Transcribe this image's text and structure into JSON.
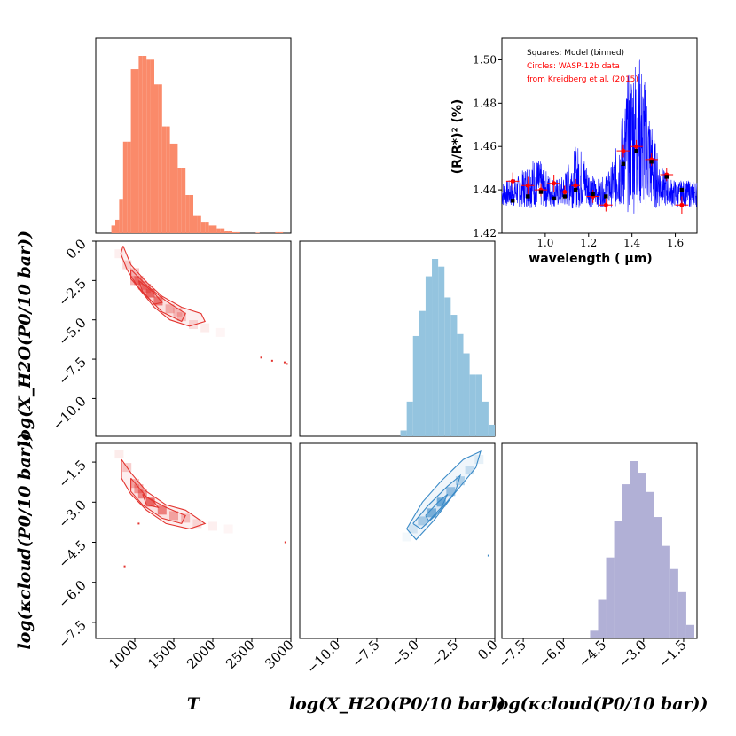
{
  "colors": {
    "temperature": "#fa8a6a",
    "water": "#94c4df",
    "cloud": "#b1b0d6",
    "contour_red": "#e3342f",
    "contour_blue": "#3a8ac7",
    "spectrum": "#0000ff",
    "data_red": "#ff0000",
    "model_black": "#000000"
  },
  "chart_data": [
    {
      "type": "histogram",
      "id": "hist_T",
      "parameter": "T",
      "xlim": [
        500,
        3000
      ],
      "bin_edges": [
        700,
        750,
        800,
        850,
        900,
        950,
        1000,
        1050,
        1100,
        1150,
        1200,
        1250,
        1300,
        1350,
        1400,
        1450,
        1500,
        1550,
        1600,
        1650,
        1700,
        1750,
        1800,
        1850,
        1900,
        1950,
        2000,
        2050,
        2100,
        2150,
        2200,
        2250,
        2300,
        2350,
        2400,
        2450,
        2500,
        2550,
        2600,
        2650,
        2700,
        2750,
        2800,
        2850,
        2900
      ],
      "counts": [
        0.04,
        0.07,
        0.18,
        0.48,
        0.48,
        0.86,
        0.86,
        0.93,
        0.93,
        0.91,
        0.91,
        0.78,
        0.78,
        0.56,
        0.56,
        0.47,
        0.47,
        0.34,
        0.34,
        0.2,
        0.2,
        0.09,
        0.09,
        0.06,
        0.06,
        0.04,
        0.04,
        0.025,
        0.025,
        0.01,
        0.01,
        0.005,
        0.005,
        0,
        0,
        0,
        0,
        0.003,
        0,
        0,
        0,
        0,
        0.005,
        0.005
      ]
    },
    {
      "type": "histogram",
      "id": "hist_water",
      "parameter": "log(X_H2O(P0/10 bar))",
      "xlim": [
        -12.4,
        0
      ],
      "bin_edges": [
        -6.0,
        -5.6,
        -5.2,
        -4.8,
        -4.4,
        -4.0,
        -3.6,
        -3.2,
        -2.8,
        -2.4,
        -2.0,
        -1.6,
        -1.2,
        -0.8,
        -0.4,
        0.0
      ],
      "counts": [
        0.03,
        0.18,
        0.52,
        0.65,
        0.83,
        0.92,
        0.88,
        0.72,
        0.63,
        0.53,
        0.43,
        0.32,
        0.32,
        0.18,
        0.06
      ]
    },
    {
      "type": "histogram",
      "id": "hist_cloud",
      "parameter": "log(kappa_cloud(P0/10 bar))",
      "xlim": [
        -8.3,
        -1.0
      ],
      "bin_edges": [
        -5.0,
        -4.7,
        -4.4,
        -4.1,
        -3.8,
        -3.5,
        -3.2,
        -2.9,
        -2.6,
        -2.3,
        -2.0,
        -1.7,
        -1.4,
        -1.1
      ],
      "counts": [
        0.04,
        0.2,
        0.42,
        0.61,
        0.8,
        0.92,
        0.86,
        0.76,
        0.63,
        0.48,
        0.36,
        0.24,
        0.07
      ]
    },
    {
      "type": "contour",
      "id": "T_vs_water",
      "x_param": "T",
      "y_param": "log(X_H2O(P0/10 bar))",
      "xlim": [
        500,
        3000
      ],
      "ylim": [
        -12.4,
        0
      ],
      "density_cells": [
        {
          "x": 900,
          "y": -1.5,
          "w": 0.25
        },
        {
          "x": 1000,
          "y": -2.5,
          "w": 0.45
        },
        {
          "x": 1100,
          "y": -2.8,
          "w": 0.55
        },
        {
          "x": 1200,
          "y": -3.3,
          "w": 0.85
        },
        {
          "x": 1300,
          "y": -3.8,
          "w": 0.75
        },
        {
          "x": 1450,
          "y": -4.3,
          "w": 0.4
        },
        {
          "x": 1600,
          "y": -4.8,
          "w": 0.35
        },
        {
          "x": 1750,
          "y": -5.3,
          "w": 0.2
        },
        {
          "x": 1900,
          "y": -5.5,
          "w": 0.12
        },
        {
          "x": 2100,
          "y": -5.8,
          "w": 0.06
        },
        {
          "x": 800,
          "y": -0.8,
          "w": 0.1
        },
        {
          "x": 1000,
          "y": -2.0,
          "w": 0.35
        },
        {
          "x": 1050,
          "y": -2.5,
          "w": 0.7
        },
        {
          "x": 1150,
          "y": -3.0,
          "w": 0.6
        },
        {
          "x": 1550,
          "y": -4.5,
          "w": 0.3
        }
      ],
      "levels": [
        [
          [
            850,
            -0.3
          ],
          [
            950,
            -1.5
          ],
          [
            1150,
            -2.6
          ],
          [
            1350,
            -3.5
          ],
          [
            1600,
            -4.2
          ],
          [
            1850,
            -4.6
          ],
          [
            1900,
            -5.1
          ],
          [
            1700,
            -5.4
          ],
          [
            1450,
            -5.0
          ],
          [
            1250,
            -4.2
          ],
          [
            1050,
            -3.0
          ],
          [
            900,
            -1.8
          ],
          [
            820,
            -0.8
          ],
          [
            850,
            -0.3
          ]
        ],
        [
          [
            950,
            -1.8
          ],
          [
            1150,
            -2.8
          ],
          [
            1400,
            -3.8
          ],
          [
            1650,
            -4.6
          ],
          [
            1600,
            -5.1
          ],
          [
            1350,
            -4.5
          ],
          [
            1150,
            -3.5
          ],
          [
            950,
            -2.4
          ],
          [
            950,
            -1.8
          ]
        ],
        [
          [
            1050,
            -2.5
          ],
          [
            1250,
            -3.3
          ],
          [
            1350,
            -3.9
          ],
          [
            1250,
            -4.0
          ],
          [
            1100,
            -3.2
          ],
          [
            1050,
            -2.5
          ]
        ]
      ],
      "outliers": [
        [
          2620,
          -7.4
        ],
        [
          2760,
          -7.6
        ],
        [
          2920,
          -7.7
        ],
        [
          2950,
          -7.8
        ]
      ]
    },
    {
      "type": "contour",
      "id": "T_vs_cloud",
      "x_param": "T",
      "y_param": "log(kappa_cloud(P0/10 bar))",
      "xlim": [
        500,
        3000
      ],
      "ylim": [
        -8.1,
        -0.8
      ],
      "density_cells": [
        {
          "x": 900,
          "y": -1.7,
          "w": 0.3
        },
        {
          "x": 1000,
          "y": -2.3,
          "w": 0.45
        },
        {
          "x": 1100,
          "y": -2.7,
          "w": 0.65
        },
        {
          "x": 1200,
          "y": -3.0,
          "w": 0.85
        },
        {
          "x": 1350,
          "y": -3.3,
          "w": 0.7
        },
        {
          "x": 1500,
          "y": -3.5,
          "w": 0.45
        },
        {
          "x": 1650,
          "y": -3.6,
          "w": 0.35
        },
        {
          "x": 1800,
          "y": -3.8,
          "w": 0.18
        },
        {
          "x": 2000,
          "y": -3.9,
          "w": 0.1
        },
        {
          "x": 2200,
          "y": -4.0,
          "w": 0.06
        },
        {
          "x": 800,
          "y": -1.2,
          "w": 0.12
        },
        {
          "x": 1050,
          "y": -2.5,
          "w": 0.55
        }
      ],
      "levels": [
        [
          [
            830,
            -1.4
          ],
          [
            950,
            -1.9
          ],
          [
            1150,
            -2.6
          ],
          [
            1400,
            -3.1
          ],
          [
            1650,
            -3.3
          ],
          [
            1900,
            -3.8
          ],
          [
            1700,
            -4.0
          ],
          [
            1400,
            -3.8
          ],
          [
            1150,
            -3.3
          ],
          [
            950,
            -2.7
          ],
          [
            830,
            -2.1
          ],
          [
            830,
            -1.4
          ]
        ],
        [
          [
            950,
            -2.1
          ],
          [
            1150,
            -2.8
          ],
          [
            1400,
            -3.2
          ],
          [
            1650,
            -3.5
          ],
          [
            1600,
            -3.8
          ],
          [
            1350,
            -3.6
          ],
          [
            1100,
            -3.1
          ],
          [
            950,
            -2.6
          ],
          [
            950,
            -2.1
          ]
        ],
        [
          [
            1100,
            -2.7
          ],
          [
            1250,
            -3.0
          ],
          [
            1300,
            -3.2
          ],
          [
            1150,
            -3.1
          ],
          [
            1100,
            -2.7
          ]
        ]
      ],
      "outliers": [
        [
          870,
          -5.4
        ],
        [
          2930,
          -4.5
        ],
        [
          1050,
          -3.8
        ]
      ]
    },
    {
      "type": "contour",
      "id": "water_vs_cloud",
      "x_param": "log(X_H2O(P0/10 bar))",
      "y_param": "log(kappa_cloud(P0/10 bar))",
      "xlim": [
        -12.4,
        0
      ],
      "ylim": [
        -8.1,
        -0.8
      ],
      "density_cells": [
        {
          "x": -5.2,
          "y": -4.0,
          "w": 0.2
        },
        {
          "x": -4.6,
          "y": -3.7,
          "w": 0.45
        },
        {
          "x": -4.0,
          "y": -3.4,
          "w": 0.75
        },
        {
          "x": -3.4,
          "y": -3.0,
          "w": 0.85
        },
        {
          "x": -2.8,
          "y": -2.6,
          "w": 0.6
        },
        {
          "x": -2.2,
          "y": -2.2,
          "w": 0.45
        },
        {
          "x": -1.6,
          "y": -1.8,
          "w": 0.3
        },
        {
          "x": -1.0,
          "y": -1.4,
          "w": 0.15
        },
        {
          "x": -5.6,
          "y": -4.3,
          "w": 0.08
        }
      ],
      "levels": [
        [
          [
            -5.6,
            -4.0
          ],
          [
            -4.6,
            -3.0
          ],
          [
            -3.4,
            -2.2
          ],
          [
            -2.0,
            -1.4
          ],
          [
            -0.9,
            -1.1
          ],
          [
            -1.2,
            -1.7
          ],
          [
            -2.6,
            -2.7
          ],
          [
            -3.9,
            -3.7
          ],
          [
            -5.0,
            -4.4
          ],
          [
            -5.6,
            -4.0
          ]
        ],
        [
          [
            -5.2,
            -3.8
          ],
          [
            -4.2,
            -3.1
          ],
          [
            -3.0,
            -2.4
          ],
          [
            -2.2,
            -2.0
          ],
          [
            -2.5,
            -2.6
          ],
          [
            -3.6,
            -3.4
          ],
          [
            -4.7,
            -4.0
          ],
          [
            -5.2,
            -3.8
          ]
        ],
        [
          [
            -4.4,
            -3.5
          ],
          [
            -3.6,
            -3.0
          ],
          [
            -3.0,
            -2.7
          ],
          [
            -3.4,
            -3.2
          ],
          [
            -4.2,
            -3.7
          ],
          [
            -4.4,
            -3.5
          ]
        ]
      ],
      "outliers": [
        [
          -0.4,
          -5.0
        ]
      ]
    },
    {
      "type": "line",
      "id": "spectrum_inset",
      "xlabel": "wavelength ( μm)",
      "ylabel": "(R/R*)² (%)",
      "xlim": [
        0.8,
        1.7
      ],
      "ylim": [
        1.42,
        1.51
      ],
      "xticks": [
        "1.0",
        "1.2",
        "1.4",
        "1.6"
      ],
      "yticks": [
        "1.42",
        "1.44",
        "1.46",
        "1.48",
        "1.50"
      ],
      "legend": [
        {
          "label": "Squares: Model (binned)",
          "color": "black"
        },
        {
          "label": "Circles: WASP-12b data",
          "color": "red"
        },
        {
          "label": "from Kreidberg et al. (2015)",
          "color": "red"
        }
      ],
      "model_binned": [
        {
          "x": 0.85,
          "y": 1.435
        },
        {
          "x": 0.92,
          "y": 1.437
        },
        {
          "x": 0.98,
          "y": 1.439
        },
        {
          "x": 1.04,
          "y": 1.436
        },
        {
          "x": 1.09,
          "y": 1.437
        },
        {
          "x": 1.14,
          "y": 1.44
        },
        {
          "x": 1.22,
          "y": 1.438
        },
        {
          "x": 1.28,
          "y": 1.437
        },
        {
          "x": 1.36,
          "y": 1.452
        },
        {
          "x": 1.42,
          "y": 1.458
        },
        {
          "x": 1.49,
          "y": 1.453
        },
        {
          "x": 1.56,
          "y": 1.446
        },
        {
          "x": 1.63,
          "y": 1.44
        }
      ],
      "observed": [
        {
          "x": 0.85,
          "y": 1.444,
          "yerr": 0.004,
          "xerr": 0.03
        },
        {
          "x": 0.92,
          "y": 1.442,
          "yerr": 0.004,
          "xerr": 0.03
        },
        {
          "x": 0.98,
          "y": 1.44,
          "yerr": 0.003,
          "xerr": 0.03
        },
        {
          "x": 1.04,
          "y": 1.443,
          "yerr": 0.004,
          "xerr": 0.03
        },
        {
          "x": 1.09,
          "y": 1.439,
          "yerr": 0.003,
          "xerr": 0.02
        },
        {
          "x": 1.14,
          "y": 1.442,
          "yerr": 0.003,
          "xerr": 0.02
        },
        {
          "x": 1.22,
          "y": 1.437,
          "yerr": 0.003,
          "xerr": 0.03
        },
        {
          "x": 1.28,
          "y": 1.433,
          "yerr": 0.003,
          "xerr": 0.03
        },
        {
          "x": 1.36,
          "y": 1.458,
          "yerr": 0.003,
          "xerr": 0.03
        },
        {
          "x": 1.42,
          "y": 1.46,
          "yerr": 0.003,
          "xerr": 0.03
        },
        {
          "x": 1.49,
          "y": 1.454,
          "yerr": 0.003,
          "xerr": 0.03
        },
        {
          "x": 1.56,
          "y": 1.447,
          "yerr": 0.003,
          "xerr": 0.03
        },
        {
          "x": 1.63,
          "y": 1.433,
          "yerr": 0.004,
          "xerr": 0.03
        }
      ]
    }
  ],
  "axes": {
    "x_T": {
      "label": "T",
      "ticks": [
        "1000",
        "1500",
        "2000",
        "2500",
        "3000"
      ]
    },
    "x_water": {
      "label": "log(X_H2O(P0/10 bar))",
      "ticks": [
        "−10.0",
        "−7.5",
        "−5.0",
        "−2.5",
        "0.0"
      ]
    },
    "x_cloud": {
      "label": "log(κcloud(P0/10 bar))",
      "ticks": [
        "−7.5",
        "−6.0",
        "−4.5",
        "−3.0",
        "−1.5"
      ]
    },
    "y_water": {
      "label": "log(X_H2O(P0/10 bar))",
      "ticks": [
        "0.0",
        "−2.5",
        "−5.0",
        "−7.5",
        "−10.0"
      ]
    },
    "y_cloud": {
      "label": "log(κcloud(P0/10 bar))",
      "ticks": [
        "−1.5",
        "−3.0",
        "−4.5",
        "−6.0",
        "−7.5"
      ]
    }
  }
}
